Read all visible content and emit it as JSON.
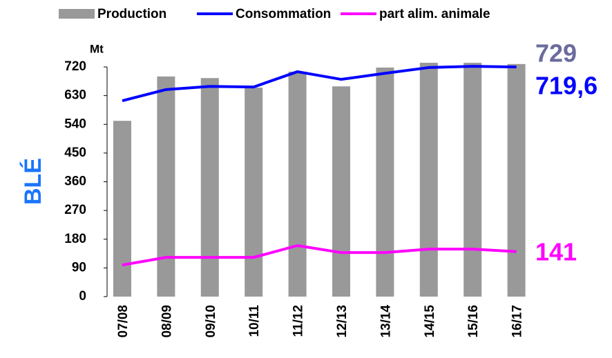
{
  "chart_data": {
    "type": "bar_line",
    "y_title": "BLÉ",
    "y_unit": "Mt",
    "categories": [
      "07/08",
      "08/09",
      "09/10",
      "10/11",
      "11/12",
      "12/13",
      "13/14",
      "14/15",
      "15/16",
      "16/17"
    ],
    "series": [
      {
        "name": "Production",
        "type": "bar",
        "color": "#999999",
        "values": [
          551,
          690,
          685,
          655,
          705,
          659,
          718,
          733,
          733,
          729
        ]
      },
      {
        "name": "Consommation",
        "type": "line",
        "color": "#0000ff",
        "values": [
          614,
          649,
          659,
          657,
          705,
          681,
          700,
          718,
          722,
          719.6
        ]
      },
      {
        "name": "part alim. animale",
        "type": "line",
        "color": "#ff00ff",
        "values": [
          99,
          123,
          123,
          123,
          160,
          138,
          138,
          149,
          149,
          141
        ]
      }
    ],
    "annotations": [
      {
        "text": "729",
        "color": "#6b6b9e"
      },
      {
        "text": "719,6",
        "color": "#0000ff"
      },
      {
        "text": "141",
        "color": "#ff00ff"
      }
    ],
    "ylim": [
      0,
      720
    ],
    "yticks": [
      0,
      90,
      180,
      270,
      360,
      450,
      540,
      630,
      720
    ],
    "legend": "top"
  }
}
